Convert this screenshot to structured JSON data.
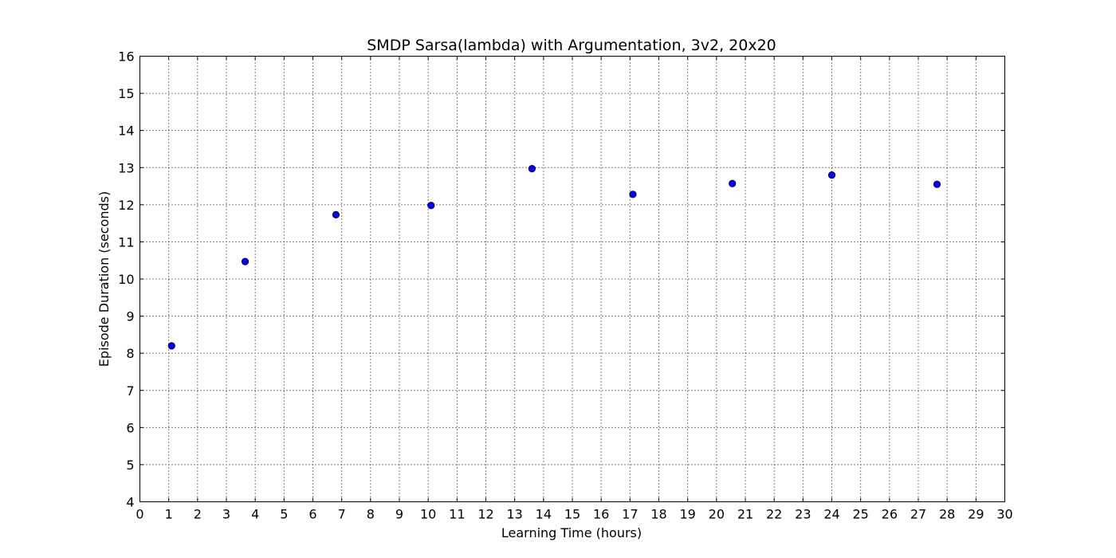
{
  "chart_data": {
    "type": "scatter",
    "title": "SMDP Sarsa(lambda) with Argumentation, 3v2, 20x20",
    "xlabel": "Learning Time (hours)",
    "ylabel": "Episode Duration (seconds)",
    "xlim": [
      0,
      30
    ],
    "ylim": [
      4,
      16
    ],
    "xticks": [
      "0",
      "1",
      "2",
      "3",
      "4",
      "5",
      "6",
      "7",
      "8",
      "9",
      "10",
      "11",
      "12",
      "13",
      "14",
      "15",
      "16",
      "17",
      "18",
      "19",
      "20",
      "21",
      "22",
      "23",
      "24",
      "25",
      "26",
      "27",
      "28",
      "29",
      "30"
    ],
    "yticks": [
      "4",
      "5",
      "6",
      "7",
      "8",
      "9",
      "10",
      "11",
      "12",
      "13",
      "14",
      "15",
      "16"
    ],
    "grid": true,
    "marker_color": "#0000ff",
    "series": [
      {
        "x": [
          1.1,
          3.65,
          6.8,
          10.1,
          13.6,
          17.1,
          20.55,
          24.0,
          27.65
        ],
        "y": [
          8.2,
          10.47,
          11.73,
          11.98,
          12.97,
          12.28,
          12.57,
          12.8,
          12.55
        ]
      }
    ]
  }
}
